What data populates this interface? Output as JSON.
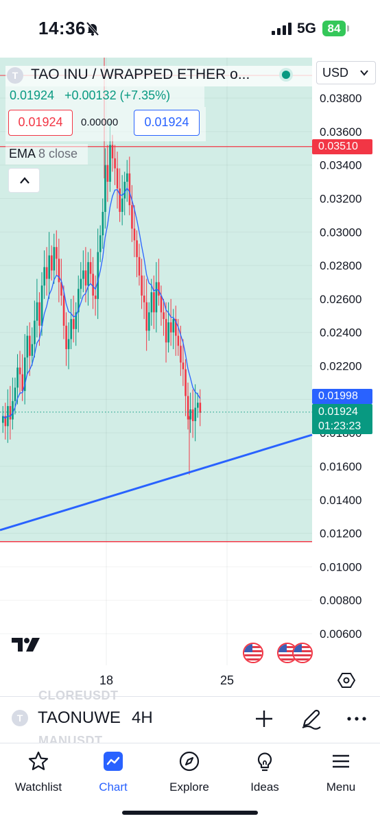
{
  "status_bar": {
    "time": "14:36",
    "network": "5G",
    "battery": "84"
  },
  "chart": {
    "symbol_icon": "T",
    "title": "TAO INU / WRAPPED ETHER o...",
    "currency": "USD",
    "legend_price": "0.01924",
    "legend_change": "+0.00132 (+7.35%)",
    "sell_price": "0.01924",
    "spread": "0.00000",
    "buy_price": "0.01924",
    "indicator_name": "EMA",
    "indicator_params": "8 close",
    "price_axis": [
      "0.03800",
      "0.03600",
      "0.03400",
      "0.03200",
      "0.03000",
      "0.02800",
      "0.02600",
      "0.02400",
      "0.02200",
      "0.02000",
      "0.01800",
      "0.01600",
      "0.01400",
      "0.01200",
      "0.01000",
      "0.00800",
      "0.00600"
    ],
    "time_axis": [
      "18",
      "25"
    ],
    "horizontal_line_label": "0.03510",
    "ema_label": "0.01998",
    "last_price_label": "0.01924",
    "countdown": "01:23:23",
    "colors": {
      "up": "#089981",
      "down": "#f23645",
      "ema": "#2962ff",
      "trendline": "#2962ff",
      "zone": "#d2ede6"
    }
  },
  "chart_data": {
    "type": "candlestick",
    "interval": "4H",
    "y_axis_ticks": [
      0.038,
      0.036,
      0.034,
      0.032,
      0.03,
      0.028,
      0.026,
      0.024,
      0.022,
      0.02,
      0.018,
      0.016,
      0.014,
      0.012,
      0.01,
      0.008,
      0.006
    ],
    "ylim": [
      0.0052,
      0.0396
    ],
    "x_tick_labels": [
      "18",
      "25"
    ],
    "last_price": 0.01924,
    "ema_last": 0.01998,
    "horizontal_line": 0.0351,
    "zone_bottom": 0.0115,
    "grid": true
  },
  "toolbar": {
    "ghost_top": "CLOREUSDT",
    "ghost_bottom": "MANUSDT",
    "symbol": "TAONUWE",
    "interval": "4H"
  },
  "nav": {
    "items": [
      {
        "label": "Watchlist",
        "icon": "star-icon"
      },
      {
        "label": "Chart",
        "icon": "chart-icon"
      },
      {
        "label": "Explore",
        "icon": "compass-icon"
      },
      {
        "label": "Ideas",
        "icon": "lightbulb-icon"
      },
      {
        "label": "Menu",
        "icon": "menu-icon"
      }
    ]
  }
}
